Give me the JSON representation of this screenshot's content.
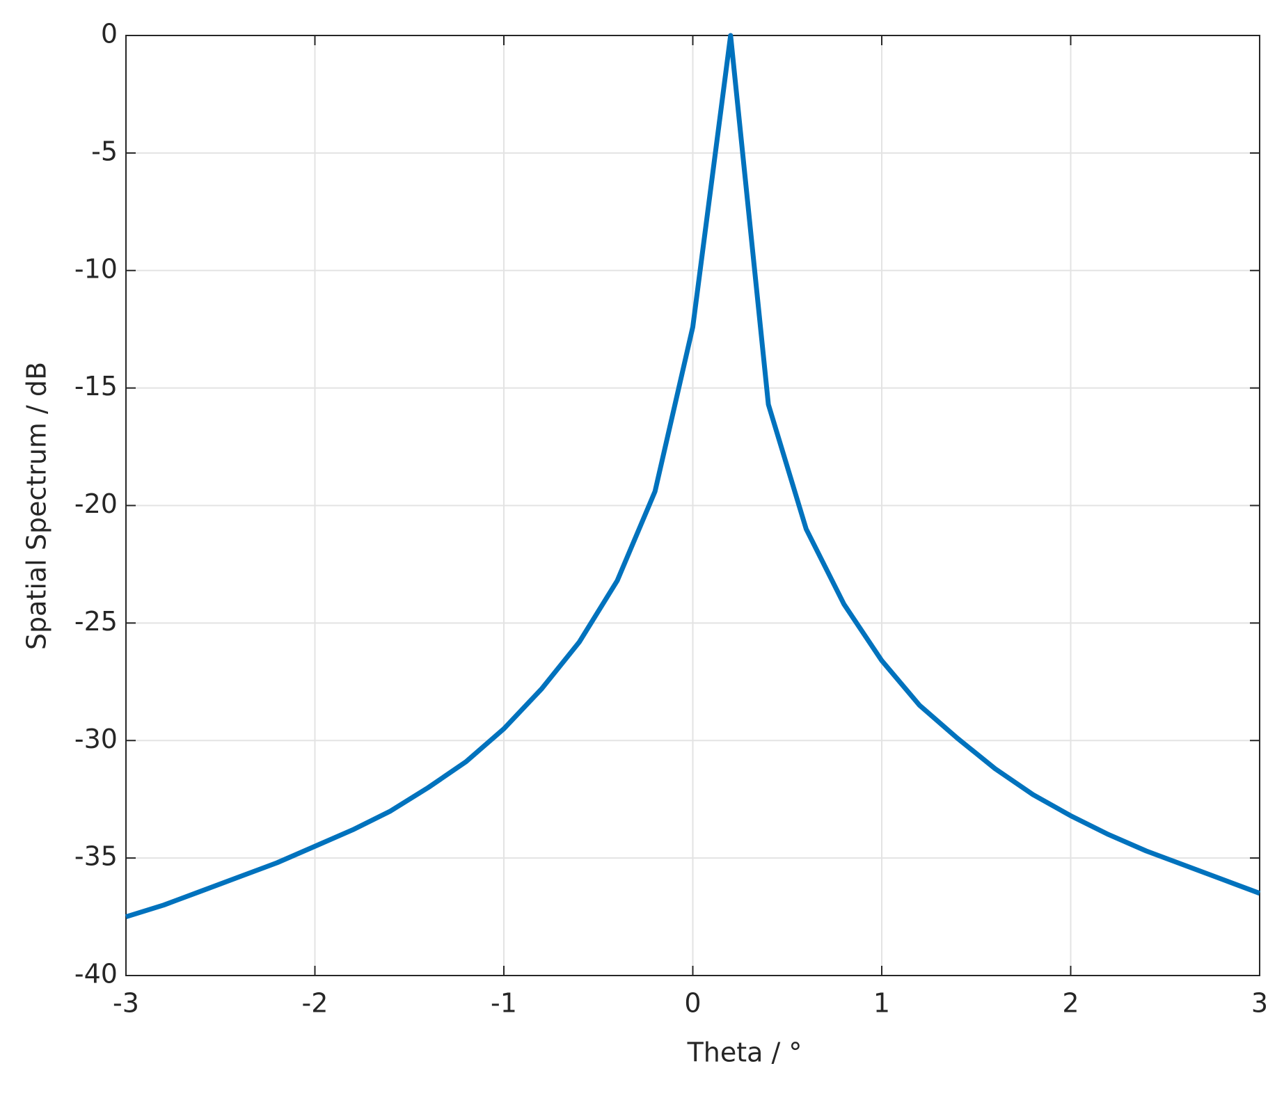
{
  "chart_data": {
    "type": "line",
    "xlabel": "Theta / °",
    "ylabel": "Spatial Spectrum / dB",
    "x": [
      -3,
      -2.8,
      -2.6,
      -2.4,
      -2.2,
      -2,
      -1.8,
      -1.6,
      -1.4,
      -1.2,
      -1,
      -0.8,
      -0.6,
      -0.4,
      -0.2,
      0,
      0.2,
      0.4,
      0.6,
      0.8,
      1,
      1.2,
      1.4,
      1.6,
      1.8,
      2,
      2.2,
      2.4,
      2.6,
      2.8,
      3
    ],
    "series": [
      {
        "color": "#0072bd",
        "values": [
          -37.5,
          -37.0,
          -36.4,
          -35.8,
          -35.2,
          -34.5,
          -33.8,
          -33.0,
          -32.0,
          -30.9,
          -29.5,
          -27.8,
          -25.8,
          -23.2,
          -19.4,
          -12.4,
          0,
          -15.7,
          -21.0,
          -24.2,
          -26.6,
          -28.5,
          -29.9,
          -31.2,
          -32.3,
          -33.2,
          -34.0,
          -34.7,
          -35.3,
          -35.9,
          -36.5
        ]
      }
    ],
    "xlim": [
      -3,
      3
    ],
    "xticks": [
      -3,
      -2,
      -1,
      0,
      1,
      2,
      3
    ],
    "ylim": [
      -40,
      0
    ],
    "yticks": [
      -40,
      -35,
      -30,
      -25,
      -20,
      -15,
      -10,
      -5,
      0
    ],
    "grid": true
  }
}
